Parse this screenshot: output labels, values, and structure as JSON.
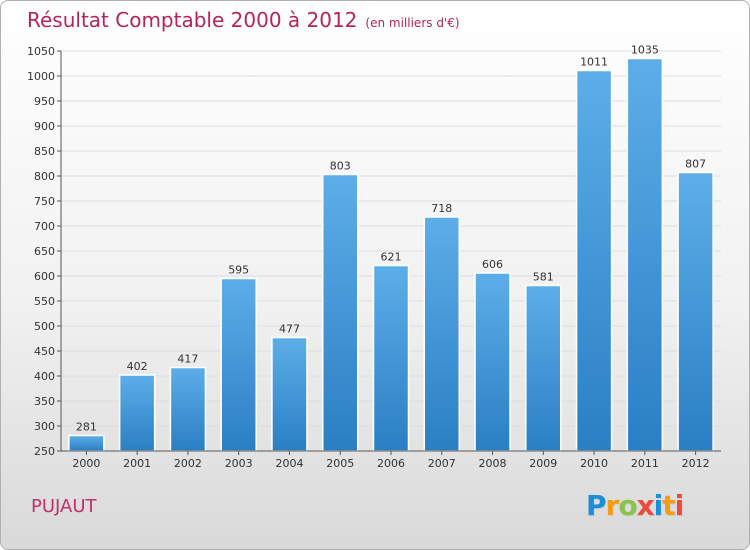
{
  "header": {
    "title": "Résultat Comptable 2000 à 2012",
    "subtitle": "(en milliers d'€)"
  },
  "footer": {
    "commune": "PUJAUT",
    "logo": {
      "letters": [
        "P",
        "r",
        "o",
        "x",
        "i",
        "t",
        "i"
      ],
      "colors": [
        "#1b8fd6",
        "#f39c12",
        "#8bc34a",
        "#e74c3c",
        "#1b8fd6",
        "#f39c12",
        "#e74c3c"
      ]
    }
  },
  "colors": {
    "bar_light": "#5daee8",
    "bar_dark": "#2a7fc4",
    "grid": "#dddddd",
    "axis_text": "#333333"
  },
  "chart_data": {
    "type": "bar",
    "title": "Résultat Comptable 2000 à 2012",
    "xlabel": "",
    "ylabel": "",
    "ylim": [
      250,
      1050
    ],
    "ytick_step": 50,
    "grid": true,
    "categories": [
      "2000",
      "2001",
      "2002",
      "2003",
      "2004",
      "2005",
      "2006",
      "2007",
      "2008",
      "2009",
      "2010",
      "2011",
      "2012"
    ],
    "values": [
      281,
      402,
      417,
      595,
      477,
      803,
      621,
      718,
      606,
      581,
      1011,
      1035,
      807
    ]
  }
}
